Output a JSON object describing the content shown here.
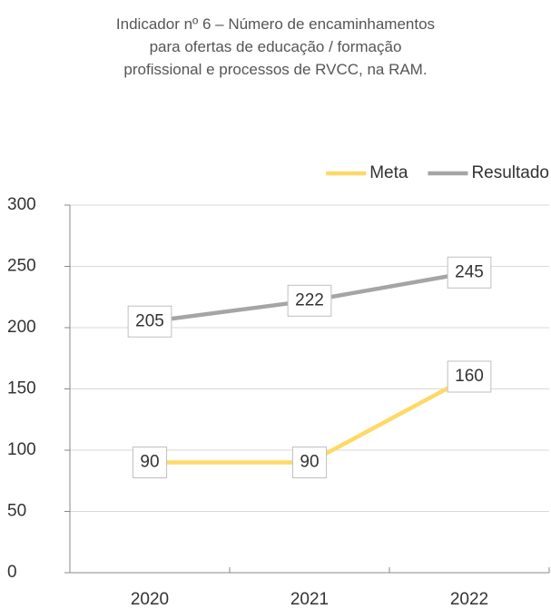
{
  "chart_data": {
    "type": "line",
    "title": "Indicador nº 6 – Número de encaminhamentos\npara ofertas de educação / formação\nprofissional e processos de RVCC, na RAM.",
    "categories": [
      "2020",
      "2021",
      "2022"
    ],
    "series": [
      {
        "name": "Meta",
        "color": "#ffd966",
        "values": [
          90,
          90,
          160
        ]
      },
      {
        "name": "Resultado",
        "color": "#a5a5a5",
        "values": [
          205,
          222,
          245
        ]
      }
    ],
    "ylim": [
      0,
      300
    ],
    "yticks": [
      0,
      50,
      100,
      150,
      200,
      250,
      300
    ],
    "grid": true,
    "legend": "top-right"
  }
}
